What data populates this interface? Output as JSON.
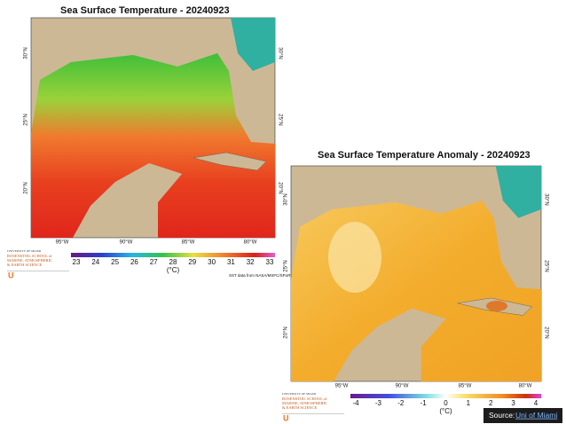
{
  "maps": [
    {
      "title": "Sea Surface Temperature - 20240923",
      "lat_labels": [
        "30°N",
        "25°N",
        "20°N"
      ],
      "lon_labels": [
        "95°W",
        "90°W",
        "85°W",
        "80°W"
      ],
      "colorbar": {
        "ticks": [
          23,
          24,
          25,
          26,
          27,
          28,
          29,
          30,
          31,
          32,
          33
        ],
        "unit": "(°C)"
      },
      "credit": "SST data from NASA/MSFC/SPoRT"
    },
    {
      "title": "Sea Surface Temperature Anomaly - 20240923",
      "lat_labels": [
        "30°N",
        "25°N",
        "20°N"
      ],
      "lon_labels": [
        "95°W",
        "90°W",
        "85°W",
        "80°W"
      ],
      "colorbar": {
        "ticks": [
          -4,
          -3,
          -2,
          -1,
          0,
          1,
          2,
          3,
          4
        ],
        "unit": "(°C)"
      }
    }
  ],
  "logo": {
    "line1": "UNIVERSITY OF MIAMI",
    "line2": "ROSENSTIEL SCHOOL of",
    "line3": "MARINE, ATMOSPHERIC",
    "line4": "& EARTH SCIENCE"
  },
  "source": {
    "prefix": "Source:",
    "link": "Uni of Miami"
  }
}
